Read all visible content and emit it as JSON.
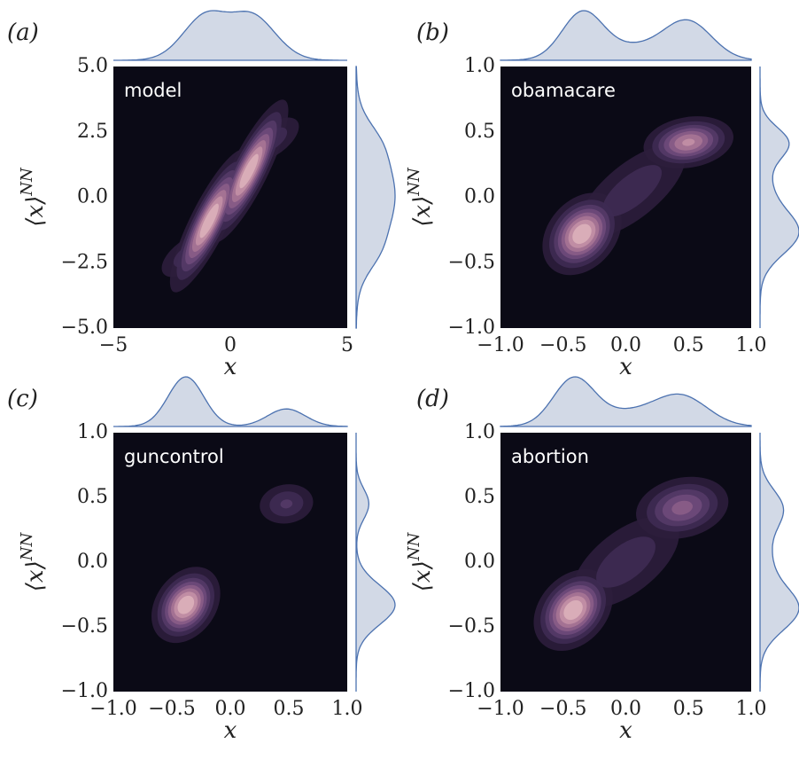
{
  "chart_data": [
    {
      "type": "kde2d",
      "panel_label": "(a)",
      "annotation": "model",
      "xlabel": "x",
      "ylabel": {
        "base": "⟨x⟩",
        "sup": "NN"
      },
      "xlim": [
        -5,
        5
      ],
      "ylim": [
        -5,
        5
      ],
      "xticks": [
        {
          "value": -5,
          "label": "−5"
        },
        0,
        5
      ],
      "yticks": [
        {
          "value": -5,
          "label": "−5.0"
        },
        {
          "value": -2.5,
          "label": "−2.5"
        },
        {
          "value": 0,
          "label": "0.0"
        },
        2.5,
        {
          "value": 5,
          "label": "5.0"
        }
      ],
      "components": [
        {
          "x": -0.9,
          "y": -0.9,
          "sx": 0.8,
          "sy": 1.3,
          "rho": 0.85,
          "w": 1
        },
        {
          "x": 0.8,
          "y": 1.0,
          "sx": 0.8,
          "sy": 1.3,
          "rho": 0.85,
          "w": 1
        },
        {
          "x": -1.8,
          "y": -2.2,
          "sx": 0.8,
          "sy": 0.6,
          "rho": 0.6,
          "w": 0.3
        },
        {
          "x": 1.8,
          "y": 2.2,
          "sx": 0.8,
          "sy": 0.6,
          "rho": 0.6,
          "w": 0.3
        }
      ],
      "grid": false
    },
    {
      "type": "kde2d",
      "panel_label": "(b)",
      "annotation": "obamacare",
      "xlabel": "x",
      "ylabel": {
        "base": "⟨x⟩",
        "sup": "NN"
      },
      "xlim": [
        -1,
        1
      ],
      "ylim": [
        -1,
        1
      ],
      "xticks": [
        {
          "value": -1,
          "label": "−1.0"
        },
        {
          "value": -0.5,
          "label": "−0.5"
        },
        {
          "value": 0,
          "label": "0.0"
        },
        0.5,
        {
          "value": 1,
          "label": "1.0"
        }
      ],
      "yticks": [
        {
          "value": -1,
          "label": "−1.0"
        },
        {
          "value": -0.5,
          "label": "−0.5"
        },
        {
          "value": 0,
          "label": "0.0"
        },
        0.5,
        {
          "value": 1,
          "label": "1.0"
        }
      ],
      "components": [
        {
          "x": -0.35,
          "y": -0.28,
          "sx": 0.15,
          "sy": 0.15,
          "rho": 0.3,
          "w": 1
        },
        {
          "x": 0.5,
          "y": 0.42,
          "sx": 0.18,
          "sy": 0.1,
          "rho": 0.2,
          "w": 0.8
        },
        {
          "x": 0.05,
          "y": 0.05,
          "sx": 0.3,
          "sy": 0.25,
          "rho": 0.7,
          "w": 0.3
        }
      ],
      "grid": false
    },
    {
      "type": "kde2d",
      "panel_label": "(c)",
      "annotation": "guncontrol",
      "xlabel": "x",
      "ylabel": {
        "base": "⟨x⟩",
        "sup": "NN"
      },
      "xlim": [
        -1,
        1
      ],
      "ylim": [
        -1,
        1
      ],
      "xticks": [
        {
          "value": -1,
          "label": "−1.0"
        },
        {
          "value": -0.5,
          "label": "−0.5"
        },
        {
          "value": 0,
          "label": "0.0"
        },
        0.5,
        {
          "value": 1,
          "label": "1.0"
        }
      ],
      "yticks": [
        {
          "value": -1,
          "label": "−1.0"
        },
        {
          "value": -0.5,
          "label": "−0.5"
        },
        {
          "value": 0,
          "label": "0.0"
        },
        0.5,
        {
          "value": 1,
          "label": "1.0"
        }
      ],
      "components": [
        {
          "x": -0.38,
          "y": -0.33,
          "sx": 0.14,
          "sy": 0.14,
          "rho": 0.3,
          "w": 1
        },
        {
          "x": 0.48,
          "y": 0.45,
          "sx": 0.15,
          "sy": 0.1,
          "rho": 0.1,
          "w": 0.35
        }
      ],
      "grid": false
    },
    {
      "type": "kde2d",
      "panel_label": "(d)",
      "annotation": "abortion",
      "xlabel": "x",
      "ylabel": {
        "base": "⟨x⟩",
        "sup": "NN"
      },
      "xlim": [
        -1,
        1
      ],
      "ylim": [
        -1,
        1
      ],
      "xticks": [
        {
          "value": -1,
          "label": "−1.0"
        },
        {
          "value": -0.5,
          "label": "−0.5"
        },
        {
          "value": 0,
          "label": "0.0"
        },
        0.5,
        {
          "value": 1,
          "label": "1.0"
        }
      ],
      "yticks": [
        {
          "value": -1,
          "label": "−1.0"
        },
        {
          "value": -0.5,
          "label": "−0.5"
        },
        {
          "value": 0,
          "label": "0.0"
        },
        0.5,
        {
          "value": 1,
          "label": "1.0"
        }
      ],
      "components": [
        {
          "x": -0.42,
          "y": -0.37,
          "sx": 0.15,
          "sy": 0.15,
          "rho": 0.3,
          "w": 1
        },
        {
          "x": 0.45,
          "y": 0.42,
          "sx": 0.2,
          "sy": 0.13,
          "rho": 0.2,
          "w": 0.6
        },
        {
          "x": 0.0,
          "y": 0.0,
          "sx": 0.3,
          "sy": 0.25,
          "rho": 0.6,
          "w": 0.3
        }
      ],
      "grid": false
    }
  ]
}
